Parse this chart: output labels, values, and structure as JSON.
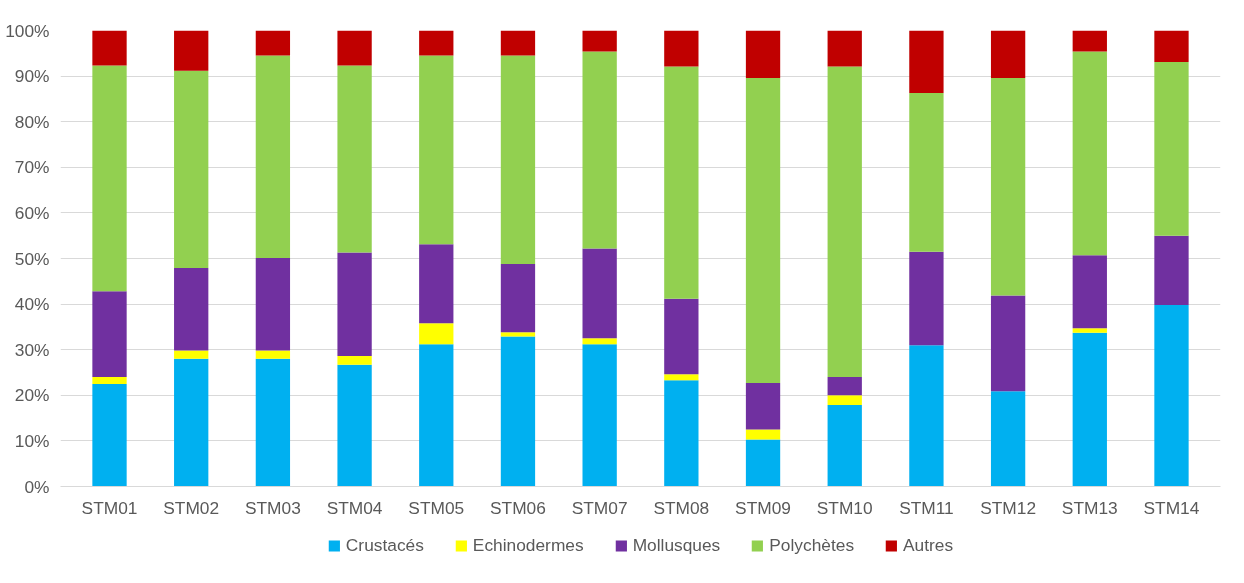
{
  "chart_data": {
    "type": "bar",
    "stacked": true,
    "categories": [
      "STM01",
      "STM02",
      "STM03",
      "STM04",
      "STM05",
      "STM06",
      "STM07",
      "STM08",
      "STM09",
      "STM10",
      "STM11",
      "STM12",
      "STM13",
      "STM14"
    ],
    "series": [
      {
        "name": "Crustacés",
        "color": "#00b0f0",
        "values": [
          22.5,
          28,
          28,
          26.7,
          31.2,
          32.9,
          31.2,
          23.3,
          10.3,
          17.9,
          31,
          20.9,
          33.7,
          39.8
        ]
      },
      {
        "name": "Echinodermes",
        "color": "#ffff00",
        "values": [
          1.5,
          1.8,
          1.8,
          1.9,
          4.6,
          0.9,
          1.3,
          1.3,
          2.2,
          2.1,
          0,
          0,
          1,
          0
        ]
      },
      {
        "name": "Mollusques",
        "color": "#7030a0",
        "values": [
          18.8,
          18.1,
          20.3,
          22.7,
          17.3,
          15,
          19.7,
          16.6,
          10.2,
          4,
          20.5,
          21,
          16,
          15.2
        ]
      },
      {
        "name": "Polychètes",
        "color": "#92d050",
        "values": [
          49.5,
          43.3,
          44.4,
          41,
          41.4,
          45.7,
          43.2,
          50.9,
          66.9,
          68.1,
          34.8,
          47.7,
          44.7,
          38.1
        ]
      },
      {
        "name": "Autres",
        "color": "#c00000",
        "values": [
          7.7,
          8.8,
          5.5,
          7.7,
          5.5,
          5.5,
          4.6,
          7.9,
          10.4,
          7.9,
          13.7,
          10.4,
          4.6,
          6.9
        ]
      }
    ],
    "ylim": [
      0,
      100
    ],
    "yticks": [
      {
        "value": 0,
        "label": "0%"
      },
      {
        "value": 10,
        "label": "10%"
      },
      {
        "value": 20,
        "label": "20%"
      },
      {
        "value": 30,
        "label": "30%"
      },
      {
        "value": 40,
        "label": "40%"
      },
      {
        "value": 50,
        "label": "50%"
      },
      {
        "value": 60,
        "label": "60%"
      },
      {
        "value": 70,
        "label": "70%"
      },
      {
        "value": 80,
        "label": "80%"
      },
      {
        "value": 90,
        "label": "90%"
      },
      {
        "value": 100,
        "label": "100%"
      }
    ],
    "grid": "y",
    "legend": "bottom"
  }
}
